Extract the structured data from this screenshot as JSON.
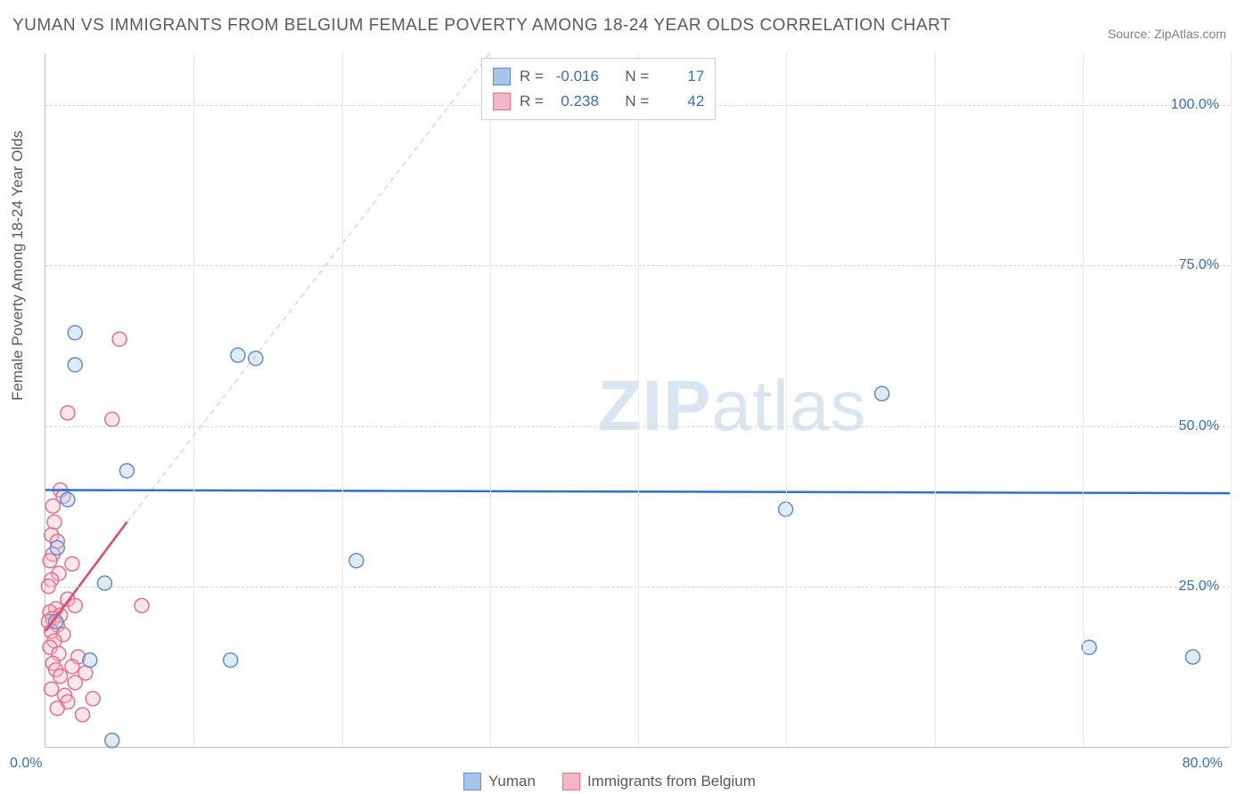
{
  "title": "YUMAN VS IMMIGRANTS FROM BELGIUM FEMALE POVERTY AMONG 18-24 YEAR OLDS CORRELATION CHART",
  "source_label": "Source: ZipAtlas.com",
  "y_axis_label": "Female Poverty Among 18-24 Year Olds",
  "watermark": {
    "zip": "ZIP",
    "atlas": "atlas"
  },
  "chart": {
    "type": "scatter",
    "background_color": "#ffffff",
    "grid_color": "#d5d5d5",
    "axis_color": "#c0c0c0",
    "tick_color": "#3b6fb6",
    "tick_fontsize": 16,
    "title_fontsize": 19,
    "label_fontsize": 17,
    "xlim": [
      0,
      80
    ],
    "ylim": [
      0,
      108
    ],
    "x_ticks": [
      0,
      80
    ],
    "x_tick_labels": [
      "0.0%",
      "80.0%"
    ],
    "x_grid_positions": [
      10,
      20,
      30,
      40,
      50,
      60,
      70,
      80
    ],
    "y_ticks": [
      25,
      50,
      75,
      100
    ],
    "y_tick_labels": [
      "25.0%",
      "50.0%",
      "75.0%",
      "100.0%"
    ],
    "marker_radius": 8,
    "marker_stroke_width": 1.5,
    "marker_fill_opacity": 0.35,
    "series": [
      {
        "name": "Yuman",
        "color_fill": "#a7c5ec",
        "color_stroke": "#5b8fd6",
        "R": "-0.016",
        "N": "17",
        "points": [
          [
            2.0,
            64.5
          ],
          [
            2.0,
            59.5
          ],
          [
            13.0,
            61.0
          ],
          [
            14.2,
            60.5
          ],
          [
            5.5,
            43.0
          ],
          [
            1.5,
            38.5
          ],
          [
            0.8,
            31.0
          ],
          [
            4.0,
            25.5
          ],
          [
            0.7,
            19.5
          ],
          [
            3.0,
            13.5
          ],
          [
            4.5,
            1.0
          ],
          [
            21.0,
            29.0
          ],
          [
            50.0,
            37.0
          ],
          [
            56.5,
            55.0
          ],
          [
            70.5,
            15.5
          ],
          [
            77.5,
            14.0
          ],
          [
            12.5,
            13.5
          ]
        ],
        "regression": {
          "x1": 0,
          "y1": 40.0,
          "x2": 80,
          "y2": 39.5,
          "color": "#2f6fd0",
          "width": 2.5
        }
      },
      {
        "name": "Immigrants from Belgium",
        "color_fill": "#f4b6c4",
        "color_stroke": "#e6708d",
        "R": "0.238",
        "N": "42",
        "points": [
          [
            5.0,
            63.5
          ],
          [
            1.5,
            52.0
          ],
          [
            4.5,
            51.0
          ],
          [
            1.0,
            40.0
          ],
          [
            1.2,
            39.0
          ],
          [
            0.5,
            37.5
          ],
          [
            0.6,
            35.0
          ],
          [
            0.4,
            33.0
          ],
          [
            0.8,
            32.0
          ],
          [
            0.5,
            30.0
          ],
          [
            0.3,
            29.0
          ],
          [
            1.8,
            28.5
          ],
          [
            0.9,
            27.0
          ],
          [
            0.4,
            26.0
          ],
          [
            0.2,
            25.0
          ],
          [
            1.5,
            23.0
          ],
          [
            6.5,
            22.0
          ],
          [
            2.0,
            22.0
          ],
          [
            0.7,
            21.5
          ],
          [
            0.3,
            21.0
          ],
          [
            1.0,
            20.5
          ],
          [
            0.5,
            20.0
          ],
          [
            0.2,
            19.5
          ],
          [
            0.8,
            19.0
          ],
          [
            0.4,
            18.0
          ],
          [
            1.2,
            17.5
          ],
          [
            0.6,
            16.5
          ],
          [
            0.3,
            15.5
          ],
          [
            0.9,
            14.5
          ],
          [
            2.2,
            14.0
          ],
          [
            0.5,
            13.0
          ],
          [
            1.8,
            12.5
          ],
          [
            0.7,
            12.0
          ],
          [
            2.7,
            11.5
          ],
          [
            1.0,
            11.0
          ],
          [
            2.0,
            10.0
          ],
          [
            0.4,
            9.0
          ],
          [
            1.3,
            8.0
          ],
          [
            3.2,
            7.5
          ],
          [
            1.5,
            7.0
          ],
          [
            0.8,
            6.0
          ],
          [
            2.5,
            5.0
          ]
        ],
        "regression": {
          "x1": 0,
          "y1": 18.0,
          "x2": 5.5,
          "y2": 35.0,
          "color": "#e6446b",
          "width": 2.5
        },
        "regression_ext": {
          "x1": 5.5,
          "y1": 35.0,
          "x2": 30.0,
          "y2": 108.0,
          "color": "#f4b6c4",
          "width": 1,
          "dash": "6,5"
        }
      }
    ]
  },
  "legend_top": {
    "R_label": "R =",
    "N_label": "N ="
  },
  "legend_bottom": {
    "items": [
      "Yuman",
      "Immigrants from Belgium"
    ]
  }
}
